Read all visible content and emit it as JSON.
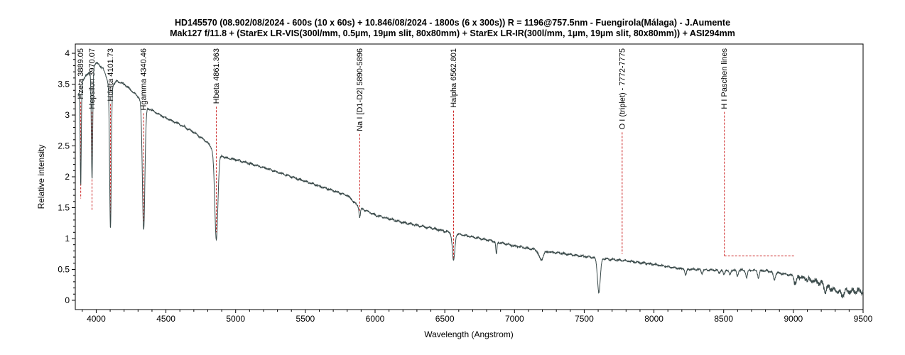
{
  "chart_data": {
    "type": "line",
    "title": "HD145570 (08.902/08/2024 - 600s (10 x 60s) + 10.846/08/2024 - 1800s (6 x 300s)) R = 1196@757.5nm - Fuengirola(Málaga) - J.Aumente",
    "subtitle": "Mak127 f/11.8 + (StarEx LR-VIS(300l/mm, 0.5µm, 19µm slit, 80x80mm) + StarEx LR-IR(300l/mm, 1µm, 19µm slit, 80x80mm)) + ASI294mm",
    "xlabel": "Wavelength (Angstrom)",
    "ylabel": "Relative intensity",
    "xlim": [
      3850,
      9500
    ],
    "ylim": [
      -0.15,
      4.15
    ],
    "xticks": [
      4000,
      4500,
      5000,
      5500,
      6000,
      6500,
      7000,
      7500,
      8000,
      8500,
      9000,
      9500
    ],
    "xtick_labels": [
      "4000",
      "4500",
      "5000",
      "5500",
      "6000",
      "6500",
      "7000",
      "7500",
      "8000",
      "8500",
      "9000",
      "9500"
    ],
    "yticks": [
      0,
      0.5,
      1,
      1.5,
      2,
      2.5,
      3,
      3.5,
      4
    ],
    "ytick_labels": [
      "0",
      "0.5",
      "1",
      "1.5",
      "2",
      "2.5",
      "3",
      "3.5",
      "4"
    ],
    "grid": false,
    "line_color": "#3a4a4a",
    "marker_color": "#cc2222",
    "spectrum": {
      "continuum": [
        [
          3870,
          3.3
        ],
        [
          3900,
          3.55
        ],
        [
          3950,
          3.7
        ],
        [
          4000,
          3.85
        ],
        [
          4050,
          3.75
        ],
        [
          4100,
          3.45
        ],
        [
          4150,
          3.55
        ],
        [
          4200,
          3.5
        ],
        [
          4250,
          3.4
        ],
        [
          4300,
          3.3
        ],
        [
          4350,
          3.12
        ],
        [
          4400,
          3.08
        ],
        [
          4500,
          2.95
        ],
        [
          4600,
          2.85
        ],
        [
          4700,
          2.72
        ],
        [
          4800,
          2.55
        ],
        [
          4870,
          2.35
        ],
        [
          4950,
          2.3
        ],
        [
          5000,
          2.28
        ],
        [
          5200,
          2.15
        ],
        [
          5400,
          2.0
        ],
        [
          5600,
          1.85
        ],
        [
          5800,
          1.7
        ],
        [
          5890,
          1.5
        ],
        [
          6000,
          1.38
        ],
        [
          6200,
          1.26
        ],
        [
          6400,
          1.17
        ],
        [
          6600,
          1.07
        ],
        [
          6800,
          0.98
        ],
        [
          7000,
          0.88
        ],
        [
          7200,
          0.8
        ],
        [
          7400,
          0.74
        ],
        [
          7600,
          0.68
        ],
        [
          7800,
          0.64
        ],
        [
          8000,
          0.58
        ],
        [
          8200,
          0.51
        ],
        [
          8400,
          0.49
        ],
        [
          8600,
          0.49
        ],
        [
          8800,
          0.48
        ],
        [
          9000,
          0.4
        ],
        [
          9200,
          0.28
        ],
        [
          9300,
          0.15
        ],
        [
          9400,
          0.15
        ],
        [
          9500,
          0.15
        ]
      ],
      "absorption": [
        [
          3889,
          1.6,
          4
        ],
        [
          3970,
          1.8,
          5
        ],
        [
          4102,
          2.3,
          6
        ],
        [
          4340,
          2.0,
          9
        ],
        [
          4861,
          1.4,
          11
        ],
        [
          5890,
          0.15,
          5
        ],
        [
          6563,
          0.45,
          9
        ],
        [
          6870,
          0.2,
          4
        ],
        [
          7190,
          0.15,
          15
        ],
        [
          7605,
          0.55,
          10
        ],
        [
          8228,
          0.1,
          6
        ],
        [
          8345,
          0.06,
          6
        ],
        [
          8467,
          0.05,
          6
        ],
        [
          8502,
          0.08,
          6
        ],
        [
          8545,
          0.09,
          6
        ],
        [
          8598,
          0.1,
          6
        ],
        [
          8665,
          0.12,
          6
        ],
        [
          8750,
          0.12,
          6
        ],
        [
          8863,
          0.13,
          7
        ],
        [
          9014,
          0.12,
          8
        ],
        [
          9229,
          0.1,
          8
        ],
        [
          9350,
          0.08,
          10
        ]
      ],
      "noise_amplitude": 0.012
    },
    "markers": [
      {
        "label": "Hzeta 3889.05",
        "x": 3889,
        "line_bottom": 1.65
      },
      {
        "label": "Hepsilon 3970.07",
        "x": 3970,
        "line_bottom": 1.45
      },
      {
        "label": "Hdelta 4101.73",
        "x": 4102,
        "line_bottom": 1.35
      },
      {
        "label": "Hgamma 4340.46",
        "x": 4340,
        "line_bottom": 1.28
      },
      {
        "label": "Hbeta 4861.363",
        "x": 4861,
        "line_bottom": 1.1
      },
      {
        "label": "Na I [D1-D2] 5890-5896",
        "x": 5890,
        "line_bottom": 1.45
      },
      {
        "label": "Halpha 6562.801",
        "x": 6563,
        "line_bottom": 0.65
      },
      {
        "label": "O I (triplet) - 7772-7775",
        "x": 7772,
        "line_bottom": 0.75
      },
      {
        "label": "H I Paschen lines",
        "x": 8505,
        "line_bottom": 0.72,
        "range_end": 9010
      }
    ]
  }
}
